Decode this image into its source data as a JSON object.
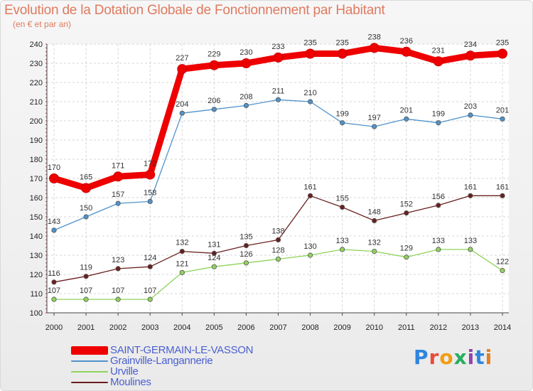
{
  "title": "Evolution de la Dotation Globale de Fonctionnement par Habitant",
  "subtitle": "(en € et par an)",
  "logo": {
    "text": "Proxiti",
    "letter_colors": [
      "#2e86de",
      "#e74c3c",
      "#f39c12",
      "#27ae60",
      "#8e44ad",
      "#2e86de",
      "#e67e22"
    ]
  },
  "chart_data": {
    "type": "line",
    "x": [
      "2000",
      "2001",
      "2002",
      "2003",
      "2004",
      "2005",
      "2006",
      "2007",
      "2008",
      "2009",
      "2010",
      "2011",
      "2012",
      "2013",
      "2014"
    ],
    "ylim": [
      100,
      240
    ],
    "yticks": [
      "100",
      "110",
      "120",
      "130",
      "140",
      "150",
      "160",
      "170",
      "180",
      "190",
      "200",
      "210",
      "220",
      "230",
      "240"
    ],
    "grid": true,
    "legend_position": "bottom-left",
    "series": [
      {
        "name": "SAINT-GERMAIN-LE-VASSON",
        "color": "#ee0000",
        "values": [
          170,
          165,
          171,
          172,
          227,
          229,
          230,
          233,
          235,
          235,
          238,
          236,
          231,
          234,
          235
        ],
        "labels": [
          "170",
          "165",
          "171",
          "172",
          "227",
          "229",
          "230",
          "233",
          "235",
          "235",
          "238",
          "236",
          "231",
          "234",
          "235"
        ]
      },
      {
        "name": "Grainville-Langannerie",
        "color": "#4f93cc",
        "values": [
          143,
          150,
          157,
          158,
          204,
          206,
          208,
          211,
          210,
          199,
          197,
          201,
          199,
          203,
          201
        ],
        "labels": [
          "143",
          "150",
          "157",
          "158",
          "204",
          "206",
          "208",
          "211",
          "210",
          "199",
          "197",
          "201",
          "199",
          "203",
          "201"
        ]
      },
      {
        "name": "Urville",
        "color": "#8fd35a",
        "values": [
          107,
          107,
          107,
          107,
          121,
          124,
          126,
          128,
          130,
          133,
          132,
          129,
          133,
          133,
          122
        ],
        "labels": [
          "107",
          "107",
          "107",
          "107",
          "121",
          "124",
          "126",
          "128",
          "130",
          "133",
          "132",
          "129",
          "133",
          "133",
          "122"
        ]
      },
      {
        "name": "Moulines",
        "color": "#6b1f1f",
        "values": [
          116,
          119,
          123,
          124,
          132,
          131,
          135,
          138,
          161,
          155,
          148,
          152,
          156,
          161,
          161
        ],
        "labels": [
          "116",
          "119",
          "123",
          "124",
          "132",
          "131",
          "135",
          "138",
          "161",
          "155",
          "148",
          "152",
          "156",
          "161",
          "161"
        ]
      }
    ]
  }
}
